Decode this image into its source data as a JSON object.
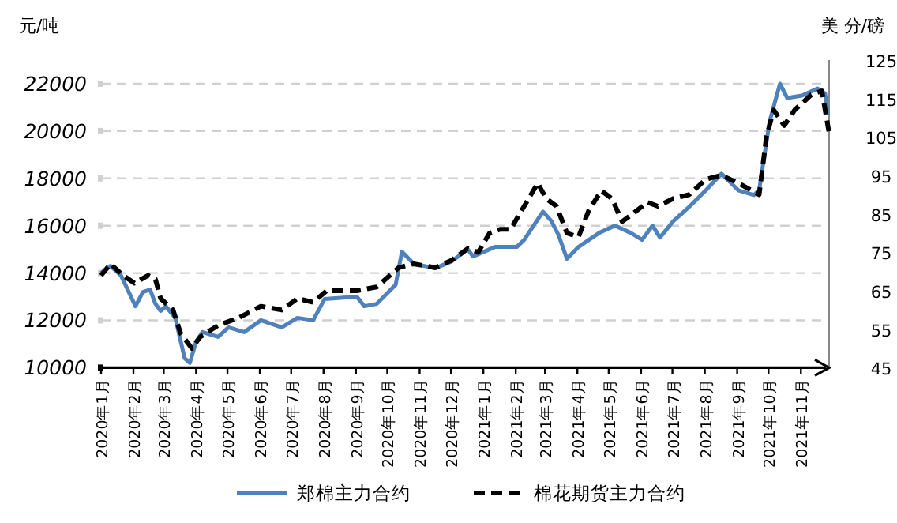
{
  "chart_data": {
    "type": "line",
    "ylabel": "元/吨",
    "y2label": "美 分/磅",
    "grid": "y",
    "legend": "bottom",
    "xlim": [
      "2020-01-01",
      "2021-11-28"
    ],
    "xticks": [
      {
        "value": "2020-01-01",
        "label": "2020年1月"
      },
      {
        "value": "2020-02-01",
        "label": "2020年2月"
      },
      {
        "value": "2020-03-01",
        "label": "2020年3月"
      },
      {
        "value": "2020-04-01",
        "label": "2020年4月"
      },
      {
        "value": "2020-05-01",
        "label": "2020年5月"
      },
      {
        "value": "2020-06-01",
        "label": "2020年6月"
      },
      {
        "value": "2020-07-01",
        "label": "2020年7月"
      },
      {
        "value": "2020-08-01",
        "label": "2020年8月"
      },
      {
        "value": "2020-09-01",
        "label": "2020年9月"
      },
      {
        "value": "2020-10-01",
        "label": "2020年10月"
      },
      {
        "value": "2020-11-01",
        "label": "2020年11月"
      },
      {
        "value": "2020-12-01",
        "label": "2020年12月"
      },
      {
        "value": "2021-01-01",
        "label": "2021年1月"
      },
      {
        "value": "2021-02-01",
        "label": "2021年2月"
      },
      {
        "value": "2021-03-01",
        "label": "2021年3月"
      },
      {
        "value": "2021-04-01",
        "label": "2021年4月"
      },
      {
        "value": "2021-05-01",
        "label": "2021年5月"
      },
      {
        "value": "2021-06-01",
        "label": "2021年6月"
      },
      {
        "value": "2021-07-01",
        "label": "2021年7月"
      },
      {
        "value": "2021-08-01",
        "label": "2021年8月"
      },
      {
        "value": "2021-09-01",
        "label": "2021年9月"
      },
      {
        "value": "2021-10-01",
        "label": "2021年10月"
      },
      {
        "value": "2021-11-01",
        "label": "2021年11月"
      }
    ],
    "ylim": [
      10000,
      23000
    ],
    "yticks": [
      10000,
      12000,
      14000,
      16000,
      18000,
      20000,
      22000
    ],
    "y2lim": [
      45,
      125
    ],
    "y2ticks": [
      45,
      55,
      65,
      75,
      85,
      95,
      105,
      115,
      125
    ],
    "series": [
      {
        "name": "郑棉主力合约",
        "color": "#4f81bd",
        "line_style": "solid",
        "x": [
          "2020-01-01",
          "2020-01-10",
          "2020-01-20",
          "2020-02-03",
          "2020-02-10",
          "2020-02-17",
          "2020-02-22",
          "2020-02-27",
          "2020-03-03",
          "2020-03-12",
          "2020-03-21",
          "2020-03-26",
          "2020-04-01",
          "2020-04-07",
          "2020-04-22",
          "2020-05-02",
          "2020-05-17",
          "2020-06-02",
          "2020-06-22",
          "2020-07-07",
          "2020-07-22",
          "2020-08-02",
          "2020-09-02",
          "2020-09-09",
          "2020-09-21",
          "2020-10-09",
          "2020-10-15",
          "2020-10-26",
          "2020-11-16",
          "2020-12-02",
          "2020-12-17",
          "2020-12-22",
          "2021-01-12",
          "2021-02-02",
          "2021-02-09",
          "2021-02-27",
          "2021-03-07",
          "2021-03-14",
          "2021-03-22",
          "2021-04-02",
          "2021-04-22",
          "2021-05-07",
          "2021-05-22",
          "2021-06-02",
          "2021-06-12",
          "2021-06-19",
          "2021-07-02",
          "2021-07-17",
          "2021-08-02",
          "2021-08-17",
          "2021-09-02",
          "2021-09-17",
          "2021-09-22",
          "2021-10-02",
          "2021-10-12",
          "2021-10-19",
          "2021-11-02",
          "2021-11-17",
          "2021-11-24",
          "2021-11-27"
        ],
        "values": [
          14000,
          14300,
          13900,
          12600,
          13200,
          13300,
          12700,
          12400,
          12600,
          12100,
          10400,
          10200,
          11100,
          11500,
          11300,
          11700,
          11500,
          12000,
          11700,
          12100,
          12000,
          12900,
          13000,
          12600,
          12700,
          13500,
          14900,
          14400,
          14200,
          14500,
          15000,
          14700,
          15100,
          15100,
          15400,
          16600,
          16200,
          15600,
          14600,
          15100,
          15700,
          16000,
          15700,
          15400,
          16000,
          15500,
          16200,
          16800,
          17500,
          18200,
          17500,
          17300,
          17500,
          20400,
          22000,
          21400,
          21500,
          21800,
          21600,
          20700
        ]
      },
      {
        "name": "棉花期货主力合约",
        "color": "#000000",
        "line_style": "dashed",
        "axis": "y2",
        "x": [
          "2020-01-01",
          "2020-01-10",
          "2020-01-22",
          "2020-02-02",
          "2020-02-15",
          "2020-02-22",
          "2020-02-27",
          "2020-03-10",
          "2020-03-17",
          "2020-03-28",
          "2020-04-05",
          "2020-04-22",
          "2020-05-12",
          "2020-06-02",
          "2020-06-22",
          "2020-07-07",
          "2020-07-22",
          "2020-08-04",
          "2020-09-02",
          "2020-09-21",
          "2020-10-12",
          "2020-10-26",
          "2020-11-16",
          "2020-12-02",
          "2020-12-17",
          "2020-12-27",
          "2021-01-07",
          "2021-01-17",
          "2021-01-27",
          "2021-02-07",
          "2021-02-22",
          "2021-03-02",
          "2021-03-12",
          "2021-03-22",
          "2021-04-02",
          "2021-04-12",
          "2021-04-24",
          "2021-05-04",
          "2021-05-14",
          "2021-05-24",
          "2021-06-07",
          "2021-06-17",
          "2021-07-02",
          "2021-07-17",
          "2021-08-02",
          "2021-08-17",
          "2021-09-02",
          "2021-09-22",
          "2021-09-29",
          "2021-10-06",
          "2021-10-16",
          "2021-10-26",
          "2021-11-11",
          "2021-11-21",
          "2021-11-28"
        ],
        "values": [
          69,
          72,
          69,
          67,
          69,
          68,
          63,
          60,
          54,
          50,
          53,
          56,
          58,
          61,
          60,
          63,
          62,
          65,
          65,
          66,
          71,
          72,
          71,
          73,
          76,
          75,
          80,
          81,
          81,
          86,
          93,
          89,
          87,
          80,
          79,
          86,
          91,
          89,
          83,
          85,
          88,
          87,
          89,
          90,
          94,
          95,
          93,
          90,
          105,
          112,
          108,
          112,
          116,
          117,
          106
        ]
      }
    ]
  }
}
